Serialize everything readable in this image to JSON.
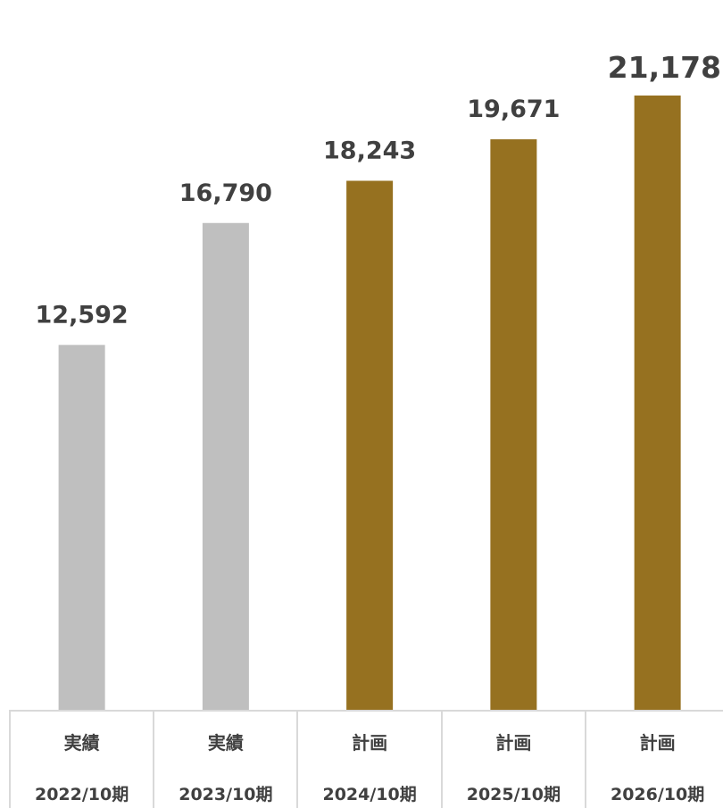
{
  "chart_data": {
    "type": "bar",
    "categories": [
      "2022/10期",
      "2023/10期",
      "2024/10期",
      "2025/10期",
      "2026/10期"
    ],
    "kinds": [
      "実績",
      "実績",
      "計画",
      "計画",
      "計画"
    ],
    "values": [
      12592,
      16790,
      18243,
      19671,
      21178
    ],
    "value_labels": [
      "12,592",
      "16,790",
      "18,243",
      "19,671",
      "21,178"
    ],
    "colors": [
      "#bfbfbf",
      "#bfbfbf",
      "#967120",
      "#967120",
      "#967120"
    ],
    "ylim": [
      0,
      21178
    ],
    "grid": false,
    "legend": "none"
  }
}
